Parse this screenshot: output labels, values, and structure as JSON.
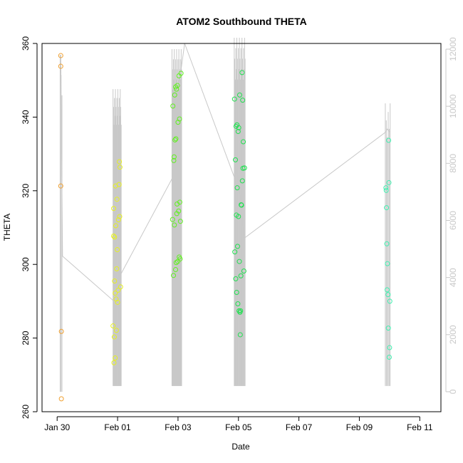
{
  "chart_data": {
    "type": "scatter",
    "title": "ATOM2 Southbound THETA",
    "xlabel": "Date",
    "ylabel": "THETA",
    "x_ticks": [
      "Jan 30",
      "Feb 01",
      "Feb 03",
      "Feb 05",
      "Feb 07",
      "Feb 09",
      "Feb 11"
    ],
    "x_tick_days": [
      0,
      2,
      4,
      6,
      8,
      10,
      12
    ],
    "xlim": [
      -0.5,
      12.7
    ],
    "ylim": [
      260,
      360
    ],
    "y_ticks": [
      260,
      280,
      300,
      320,
      340,
      360
    ],
    "y2lim": [
      -700,
      12200
    ],
    "y2_ticks": [
      0,
      2000,
      4000,
      6000,
      8000,
      10000,
      12000
    ],
    "grid": false,
    "colors": {
      "line": "#c8c8c8",
      "group1": "#f0a030",
      "group2": "#e6f020",
      "group3": "#60f020",
      "group4": "#20e050",
      "group5": "#40f0b0"
    },
    "series": [
      {
        "color": "#f0a030",
        "x": [
          0.12,
          0.12,
          0.12,
          0.14,
          0.14
        ],
        "y": [
          356.7,
          353.8,
          321.3,
          281.8,
          263.5
        ]
      },
      {
        "color": "#e6f020",
        "x": [
          1.85,
          1.87,
          1.87,
          1.88,
          1.89,
          1.9,
          1.9,
          1.92,
          1.92,
          1.93,
          1.94,
          1.95,
          1.96,
          1.97,
          1.98,
          1.99,
          2.0,
          2.02,
          2.03,
          2.05,
          2.06,
          2.07,
          2.08,
          2.1
        ],
        "y": [
          283.3,
          315.2,
          307.7,
          273.3,
          280.3,
          307.4,
          295.5,
          274.6,
          292.2,
          321.3,
          310.5,
          290.6,
          282.1,
          298.8,
          317.7,
          304.0,
          289.7,
          293.0,
          312.1,
          321.7,
          327.9,
          313.0,
          326.4,
          293.9
        ]
      },
      {
        "color": "#60f020",
        "x": [
          3.82,
          3.83,
          3.85,
          3.86,
          3.87,
          3.88,
          3.89,
          3.9,
          3.92,
          3.92,
          3.93,
          3.94,
          3.95,
          3.96,
          3.97,
          3.98,
          3.99,
          4.0,
          4.02,
          4.03,
          4.04,
          4.05,
          4.06,
          4.07,
          4.08,
          4.1
        ],
        "y": [
          312.2,
          343.0,
          297.0,
          328.2,
          329.2,
          310.7,
          346.0,
          333.8,
          298.6,
          348.2,
          334.1,
          300.5,
          347.6,
          313.8,
          316.4,
          348.6,
          300.8,
          338.6,
          314.5,
          351.2,
          302.0,
          339.5,
          316.9,
          301.5,
          311.7,
          351.9
        ]
      },
      {
        "color": "#20e050",
        "x": [
          5.87,
          5.88,
          5.9,
          5.91,
          5.92,
          5.93,
          5.94,
          5.95,
          5.96,
          5.97,
          5.98,
          5.99,
          6.0,
          6.01,
          6.02,
          6.03,
          6.04,
          6.05,
          6.06,
          6.07,
          6.08,
          6.09,
          6.1,
          6.12,
          6.13,
          6.14,
          6.15,
          6.16,
          6.18,
          6.2
        ],
        "y": [
          344.9,
          303.4,
          328.4,
          296.1,
          337.5,
          313.4,
          292.4,
          337.9,
          320.8,
          304.9,
          289.3,
          336.1,
          313.0,
          337.1,
          287.4,
          300.8,
          346.0,
          287.0,
          280.9,
          287.4,
          296.9,
          316.2,
          316.1,
          352.1,
          322.7,
          344.6,
          326.1,
          333.3,
          298.2,
          326.2
        ]
      },
      {
        "color": "#40f0b0",
        "x": [
          10.88,
          10.89,
          10.9,
          10.91,
          10.92,
          10.93,
          10.95,
          10.96,
          10.97,
          10.98,
          10.99,
          11.0,
          11.01
        ],
        "y": [
          320.8,
          320.1,
          315.4,
          305.6,
          293.1,
          300.2,
          291.8,
          282.7,
          333.7,
          322.2,
          274.8,
          277.4,
          290.0
        ]
      }
    ],
    "secondary_line": {
      "axis": "right",
      "color": "#c8c8c8",
      "x": [
        0.12,
        0.18,
        1.85,
        1.87,
        2.1,
        3.82,
        3.85,
        4.0,
        4.22,
        5.87,
        5.95,
        6.2,
        6.22,
        10.88,
        10.92,
        11.01
      ],
      "y": [
        11800,
        4750,
        3200,
        3250,
        4100,
        7500,
        7600,
        10500,
        12200,
        7500,
        7800,
        5400,
        5400,
        9100,
        9200,
        9100
      ]
    },
    "spike_ranges": [
      {
        "x_start": 0.1,
        "x_end": 0.16,
        "count": 3,
        "low": 0,
        "high": 11800
      },
      {
        "x_start": 1.85,
        "x_end": 2.12,
        "count": 18,
        "low": 200,
        "high": 10600
      },
      {
        "x_start": 3.8,
        "x_end": 4.12,
        "count": 22,
        "low": 200,
        "high": 12000
      },
      {
        "x_start": 5.86,
        "x_end": 6.22,
        "count": 22,
        "low": 200,
        "high": 12400
      },
      {
        "x_start": 10.86,
        "x_end": 11.02,
        "count": 6,
        "low": 200,
        "high": 10100
      }
    ]
  }
}
